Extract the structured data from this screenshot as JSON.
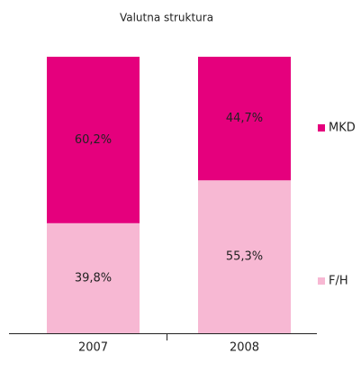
{
  "chart_data": {
    "type": "stacked_bar",
    "title": "Valutna struktura",
    "categories": [
      "2007",
      "2008"
    ],
    "series": [
      {
        "name": "F/H",
        "color": "#f7b8d3",
        "values": [
          39.8,
          55.3
        ],
        "value_labels": [
          "39,8%",
          "55,3%"
        ]
      },
      {
        "name": "MKD",
        "color": "#e5007d",
        "values": [
          60.2,
          44.7
        ],
        "value_labels": [
          "60,2%",
          "44,7%"
        ]
      }
    ],
    "ylim": [
      0,
      100
    ]
  }
}
